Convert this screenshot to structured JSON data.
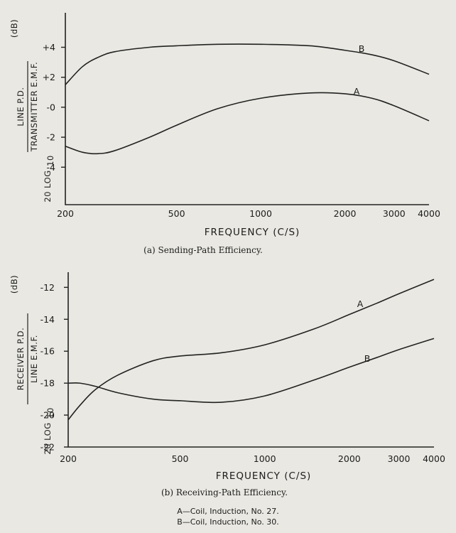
{
  "chart_data": [
    {
      "type": "line",
      "caption": "(a) Sending-Path Efficiency.",
      "xlabel": "FREQUENCY (C/S)",
      "ylabel_top": "LINE P.D.",
      "ylabel_bottom": "TRANSMITTER E.M.F.",
      "ylabel_prefix": "20 LOG",
      "ylabel_sub": "10",
      "yunit": "(dB)",
      "x_scale": "log",
      "xlim": [
        200,
        4000
      ],
      "ylim": [
        -6.5,
        6.3
      ],
      "x_ticks": [
        200,
        500,
        1000,
        2000,
        3000,
        4000
      ],
      "x_tick_labels": [
        "200",
        "500",
        "1000",
        "2000",
        "3000",
        "4000"
      ],
      "y_ticks": [
        4,
        2,
        0,
        -2,
        -4
      ],
      "y_tick_labels": [
        "+4",
        "+2",
        "-0",
        "-2",
        "-4"
      ],
      "series": [
        {
          "name": "B",
          "x": [
            200,
            230,
            260,
            300,
            400,
            500,
            700,
            1000,
            1500,
            2000,
            2500,
            3000,
            4000
          ],
          "y": [
            1.5,
            2.7,
            3.3,
            3.7,
            4.0,
            4.1,
            4.2,
            4.2,
            4.1,
            3.8,
            3.5,
            3.1,
            2.2
          ]
        },
        {
          "name": "A",
          "x": [
            200,
            230,
            260,
            300,
            400,
            500,
            700,
            1000,
            1500,
            2000,
            2500,
            3000,
            4000
          ],
          "y": [
            -2.6,
            -3.0,
            -3.1,
            -2.9,
            -2.0,
            -1.2,
            -0.1,
            0.6,
            0.95,
            0.9,
            0.6,
            0.1,
            -0.9
          ]
        }
      ]
    },
    {
      "type": "line",
      "caption": "(b) Receiving-Path Efficiency.",
      "xlabel": "FREQUENCY (C/S)",
      "ylabel_top": "RECEIVER P.D.",
      "ylabel_bottom": "LINE E.M.F.",
      "ylabel_prefix": "20 LOG",
      "ylabel_sub": "10",
      "yunit": "(dB)",
      "x_scale": "log",
      "xlim": [
        200,
        4000
      ],
      "ylim": [
        -22,
        -11.05
      ],
      "x_ticks": [
        200,
        500,
        1000,
        2000,
        3000,
        4000
      ],
      "x_tick_labels": [
        "200",
        "500",
        "1000",
        "2000",
        "3000",
        "4000"
      ],
      "y_ticks": [
        -12,
        -14,
        -16,
        -18,
        -20,
        -22
      ],
      "y_tick_labels": [
        "-12",
        "-14",
        "-16",
        "-18",
        "-20",
        "-22"
      ],
      "series": [
        {
          "name": "A",
          "x": [
            200,
            220,
            250,
            300,
            400,
            500,
            700,
            1000,
            1500,
            2000,
            2500,
            3000,
            4000
          ],
          "y": [
            -20.3,
            -19.4,
            -18.4,
            -17.5,
            -16.6,
            -16.3,
            -16.1,
            -15.6,
            -14.6,
            -13.7,
            -13.0,
            -12.4,
            -11.5
          ]
        },
        {
          "name": "B",
          "x": [
            200,
            220,
            250,
            300,
            400,
            500,
            700,
            1000,
            1500,
            2000,
            2500,
            3000,
            4000
          ],
          "y": [
            -18.0,
            -18.0,
            -18.2,
            -18.6,
            -19.0,
            -19.1,
            -19.2,
            -18.8,
            -17.8,
            -17.0,
            -16.4,
            -15.9,
            -15.2
          ]
        }
      ]
    }
  ],
  "legend": [
    "A—Coil, Induction, No. 27.",
    "B—Coil, Induction, No. 30."
  ]
}
